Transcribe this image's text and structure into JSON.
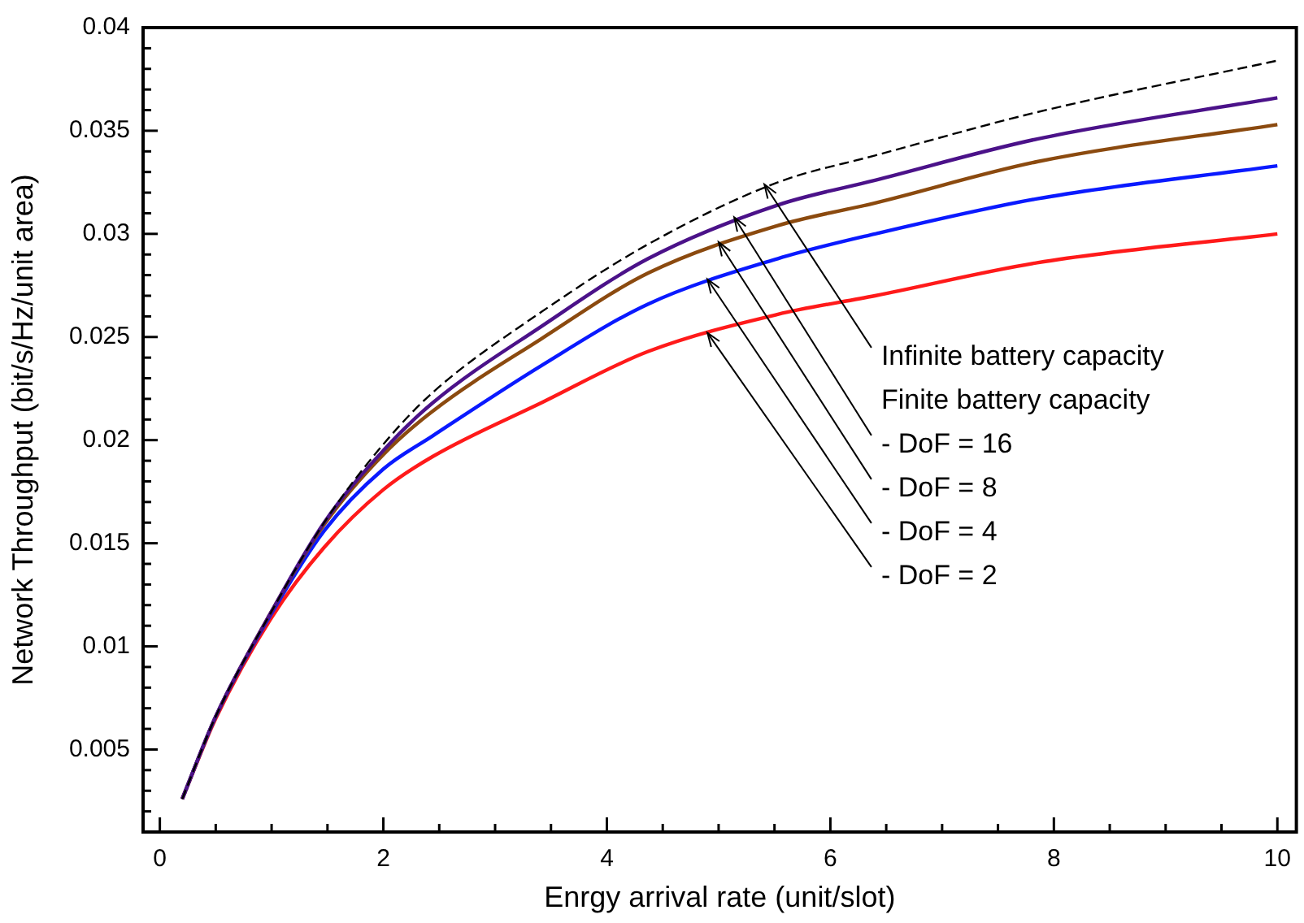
{
  "chart_data": {
    "type": "line",
    "xlabel": "Enrgy arrival rate (unit/slot)",
    "ylabel": "Network Throughput (bit/s/Hz/unit area)",
    "x": [
      0.2,
      0.5,
      1,
      1.47,
      2,
      2.44,
      3.41,
      4.37,
      5.53,
      6.4,
      7.85,
      10
    ],
    "series": [
      {
        "color": "#000000",
        "line_style": "dashed",
        "values": [
          0.0026,
          0.0066,
          0.0117,
          0.016,
          0.0198,
          0.0223,
          0.0262,
          0.0295,
          0.0325,
          0.0338,
          0.0359,
          0.0384
        ]
      },
      {
        "color": "#4b1289",
        "values": [
          0.0026,
          0.0066,
          0.0117,
          0.016,
          0.0195,
          0.0218,
          0.0255,
          0.0288,
          0.0314,
          0.0326,
          0.0346,
          0.0366
        ]
      },
      {
        "color": "#8b4a0f",
        "values": [
          0.0026,
          0.0066,
          0.0117,
          0.0159,
          0.0193,
          0.0214,
          0.0249,
          0.0281,
          0.0304,
          0.0315,
          0.0335,
          0.0353
        ]
      },
      {
        "color": "#0a1aff",
        "values": [
          0.0026,
          0.0066,
          0.0116,
          0.0156,
          0.0186,
          0.0202,
          0.0236,
          0.0266,
          0.0288,
          0.03,
          0.0317,
          0.0333
        ]
      },
      {
        "color": "#ff1a1a",
        "values": [
          0.0026,
          0.0065,
          0.0114,
          0.0148,
          0.0176,
          0.0192,
          0.0218,
          0.0243,
          0.0261,
          0.027,
          0.0286,
          0.03
        ]
      }
    ],
    "line_style": "solid",
    "marker": "none",
    "xlim": [
      -0.15,
      10.17
    ],
    "ylim": [
      0.001,
      0.04
    ],
    "xticks": [
      0,
      {
        "value": 0.5,
        "label": null
      },
      {
        "value": 1,
        "label": null
      },
      {
        "value": 1.5,
        "label": null
      },
      2,
      {
        "value": 2.5,
        "label": null
      },
      {
        "value": 3,
        "label": null
      },
      {
        "value": 3.5,
        "label": null
      },
      4,
      {
        "value": 4.5,
        "label": null
      },
      {
        "value": 5,
        "label": null
      },
      {
        "value": 5.5,
        "label": null
      },
      6,
      {
        "value": 6.5,
        "label": null
      },
      {
        "value": 7,
        "label": null
      },
      {
        "value": 7.5,
        "label": null
      },
      8,
      {
        "value": 8.5,
        "label": null
      },
      {
        "value": 9,
        "label": null
      },
      {
        "value": 9.5,
        "label": null
      },
      10
    ],
    "yticks": [
      {
        "value": 0.001,
        "label": null
      },
      {
        "value": 0.002,
        "label": null
      },
      {
        "value": 0.003,
        "label": null
      },
      {
        "value": 0.004,
        "label": null
      },
      0.005,
      {
        "value": 0.006,
        "label": null
      },
      {
        "value": 0.007,
        "label": null
      },
      {
        "value": 0.008,
        "label": null
      },
      {
        "value": 0.009,
        "label": null
      },
      0.01,
      {
        "value": 0.011,
        "label": null
      },
      {
        "value": 0.012,
        "label": null
      },
      {
        "value": 0.013,
        "label": null
      },
      {
        "value": 0.014,
        "label": null
      },
      0.015,
      {
        "value": 0.016,
        "label": null
      },
      {
        "value": 0.017,
        "label": null
      },
      {
        "value": 0.018,
        "label": null
      },
      {
        "value": 0.019,
        "label": null
      },
      0.02,
      {
        "value": 0.021,
        "label": null
      },
      {
        "value": 0.022,
        "label": null
      },
      {
        "value": 0.023,
        "label": null
      },
      {
        "value": 0.024,
        "label": null
      },
      0.025,
      {
        "value": 0.026,
        "label": null
      },
      {
        "value": 0.027,
        "label": null
      },
      {
        "value": 0.028,
        "label": null
      },
      {
        "value": 0.029,
        "label": null
      },
      0.03,
      {
        "value": 0.031,
        "label": null
      },
      {
        "value": 0.032,
        "label": null
      },
      {
        "value": 0.033,
        "label": null
      },
      {
        "value": 0.034,
        "label": null
      },
      0.035,
      {
        "value": 0.036,
        "label": null
      },
      {
        "value": 0.037,
        "label": null
      },
      {
        "value": 0.038,
        "label": null
      },
      {
        "value": 0.039,
        "label": null
      },
      0.04
    ],
    "annotations": [
      {
        "text": "Infinite battery capacity",
        "x": 5.41,
        "y": 0.0324
      },
      "Finite battery capacity",
      {
        "text": "- DoF = 16",
        "x": 5.14,
        "y": 0.0308
      },
      {
        "text": "- DoF = 8",
        "x": 5.0,
        "y": 0.0296
      },
      {
        "text": "- DoF = 4",
        "x": 4.9,
        "y": 0.0278
      },
      {
        "text": "- DoF = 2",
        "x": 4.9,
        "y": 0.0252
      }
    ]
  }
}
